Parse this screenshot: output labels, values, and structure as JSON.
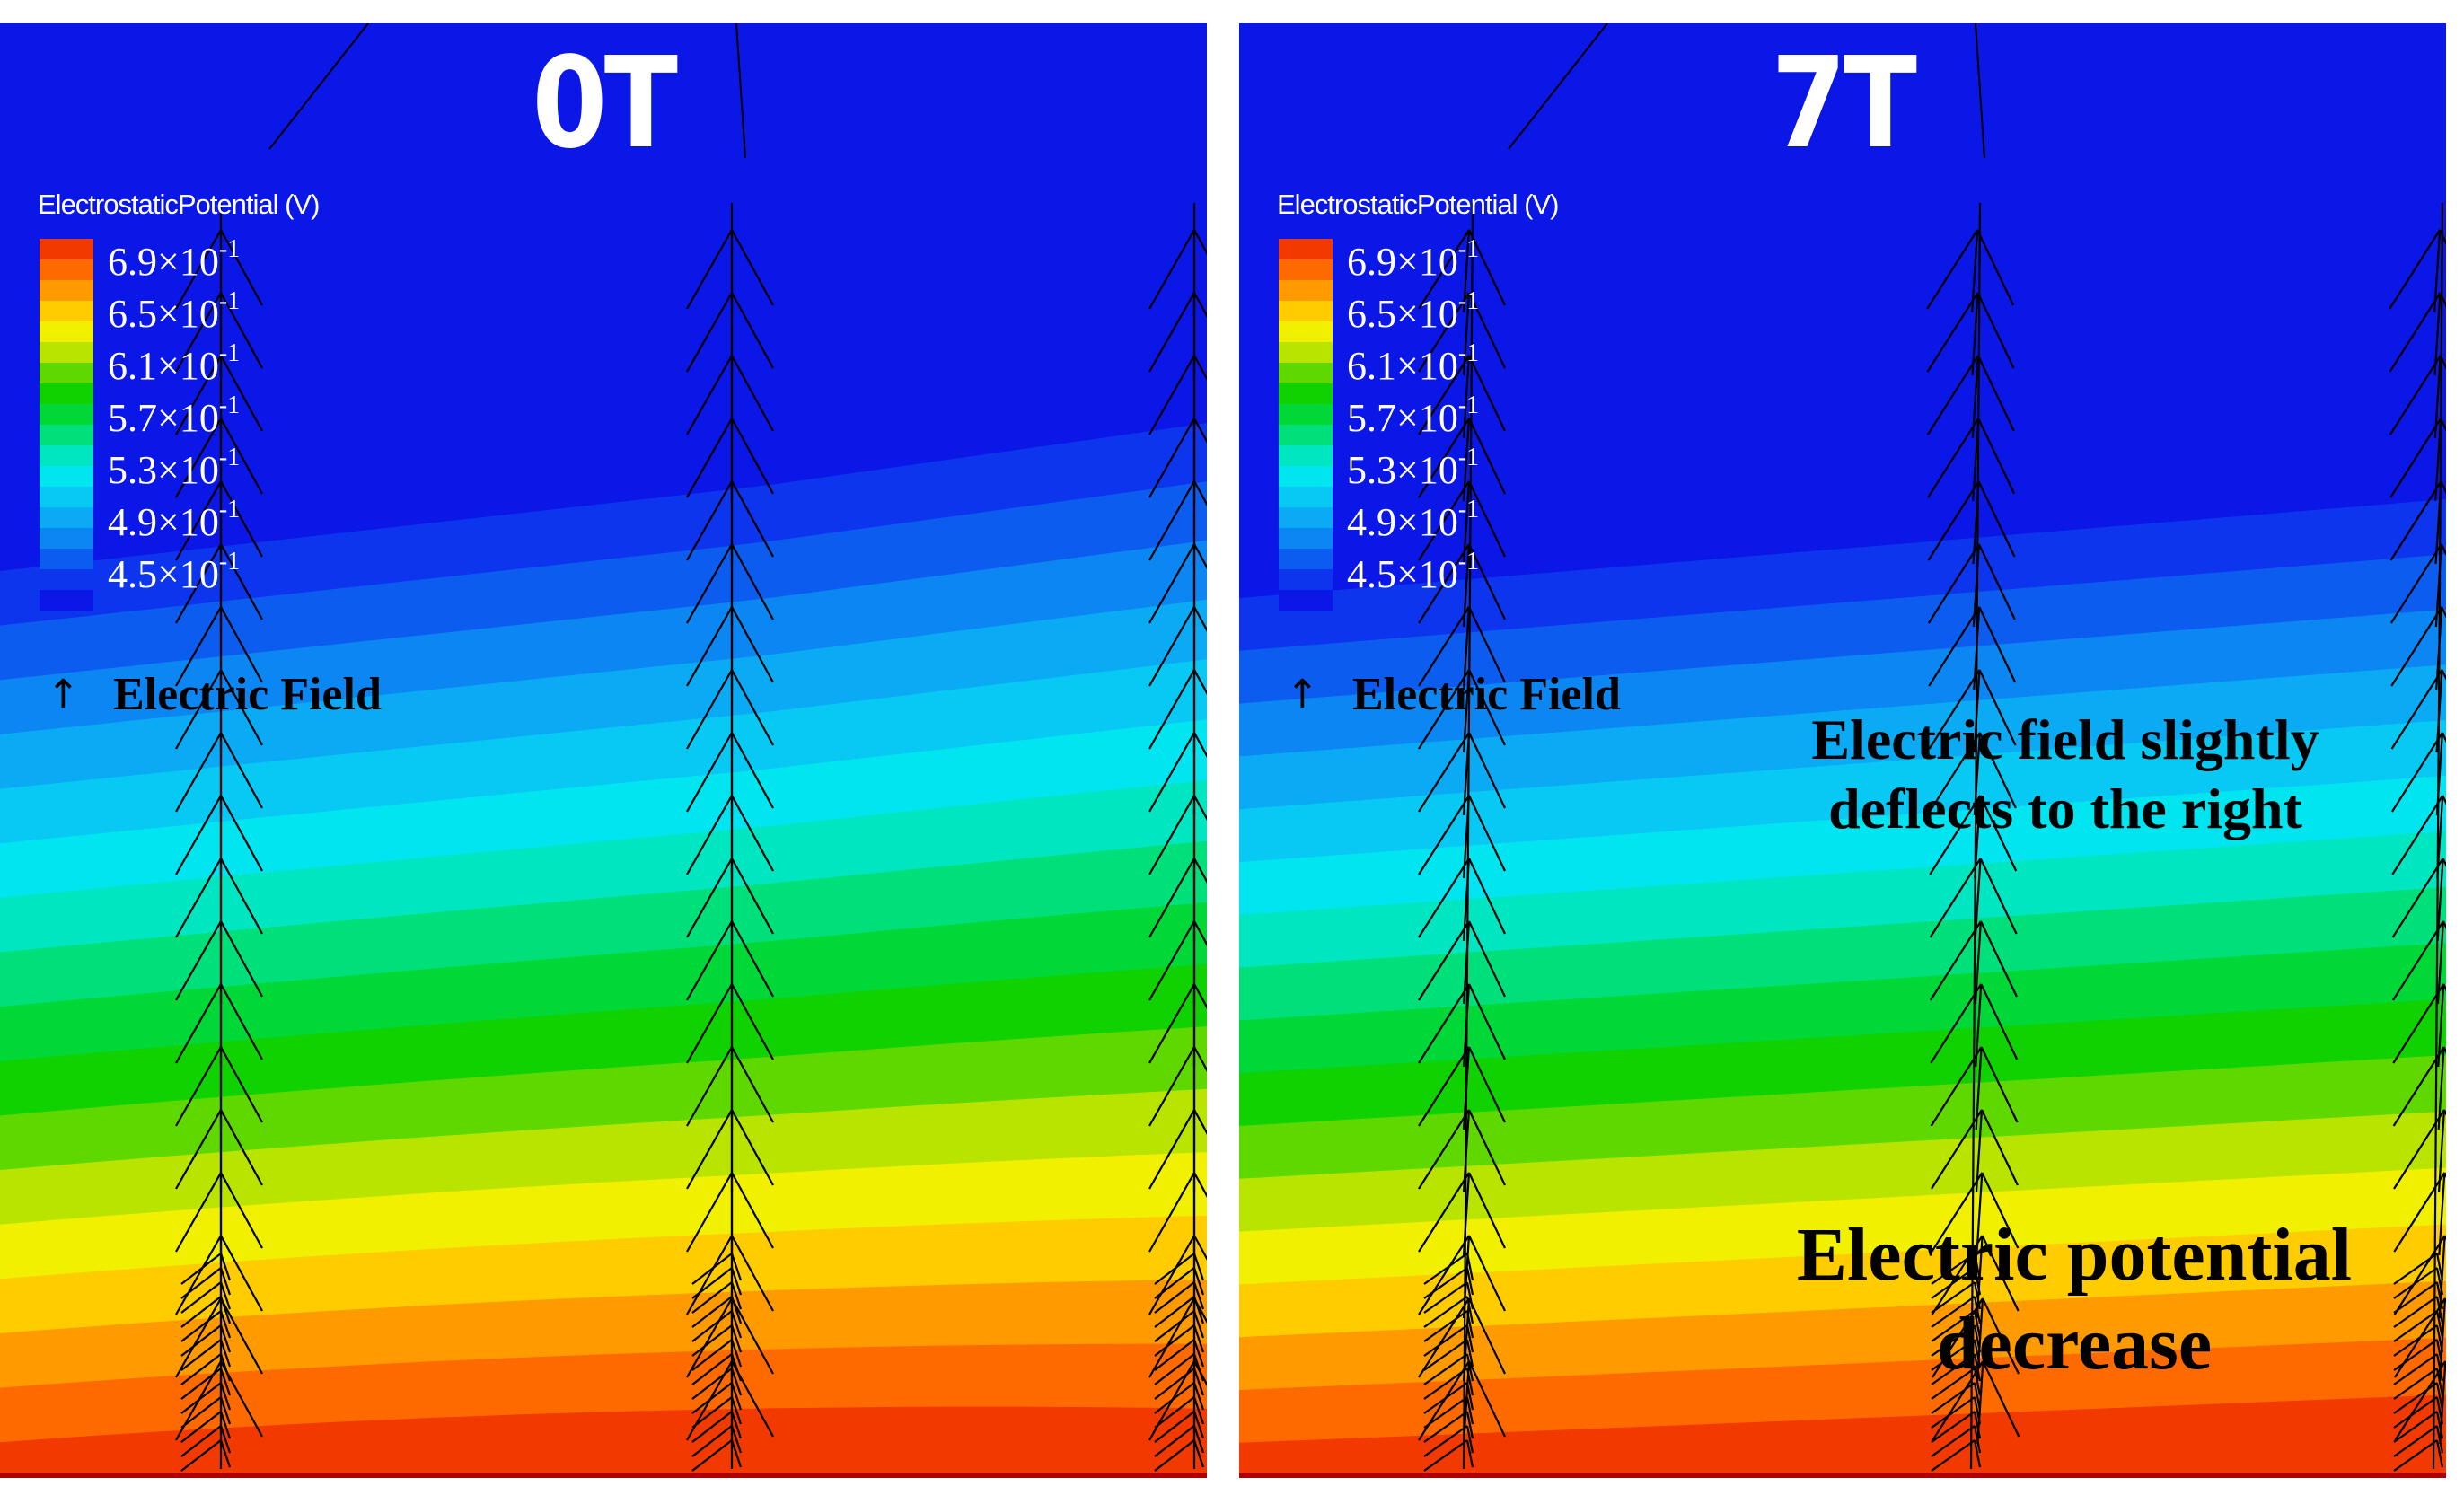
{
  "panels": [
    {
      "title": "0T",
      "colorbar_title": "ElectrostaticPotential (V)",
      "legend_label": "Electric Field",
      "tilt": 0.0
    },
    {
      "title": "7T",
      "colorbar_title": "ElectrostaticPotential (V)",
      "legend_label": "Electric Field",
      "tilt": 1.0
    }
  ],
  "colorbar_ticks": [
    {
      "mantissa": "6.9×10",
      "exponent": "-1"
    },
    {
      "mantissa": "6.5×10",
      "exponent": "-1"
    },
    {
      "mantissa": "6.1×10",
      "exponent": "-1"
    },
    {
      "mantissa": "5.7×10",
      "exponent": "-1"
    },
    {
      "mantissa": "5.3×10",
      "exponent": "-1"
    },
    {
      "mantissa": "4.9×10",
      "exponent": "-1"
    },
    {
      "mantissa": "4.5×10",
      "exponent": "-1"
    }
  ],
  "legend_arrow": "↑",
  "annotations": {
    "deflect_line1": "Electric field slightly",
    "deflect_line2": "deflects to the right",
    "decrease_line1": "Electric potential",
    "decrease_line2": "decrease"
  },
  "colors": {
    "band_top_to_bottom": [
      "#0a17e6",
      "#0d35ee",
      "#0d5cf0",
      "#0b86f2",
      "#0aaaf5",
      "#08c8f4",
      "#00e5f0",
      "#00e6c0",
      "#00e07a",
      "#00d838",
      "#10d200",
      "#5fd800",
      "#b8e400",
      "#f0f000",
      "#ffcc00",
      "#ff9a00",
      "#ff6a00",
      "#f23a00"
    ],
    "arrow": "#000000",
    "bottom_line": "#b00000"
  }
}
